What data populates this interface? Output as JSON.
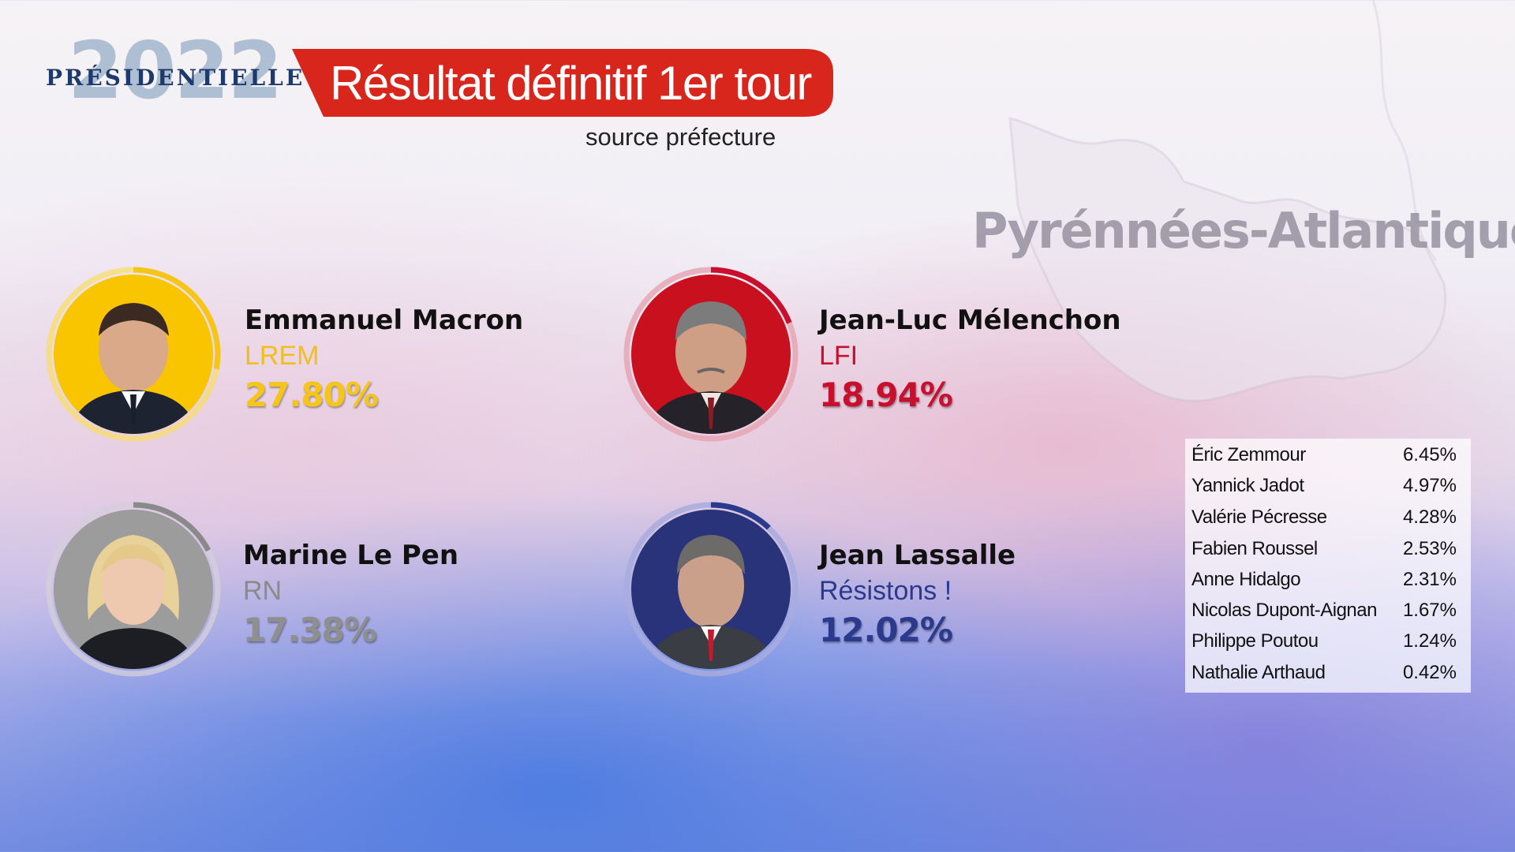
{
  "header": {
    "year": "2022",
    "election": "PRÉSIDENTIELLE",
    "banner_title": "Résultat définitif 1er tour",
    "source": "source préfecture",
    "region": "Pyrénnées-Atlantiques",
    "banner_color": "#d8261c"
  },
  "chart_data": {
    "type": "table",
    "unit": "%",
    "main_candidates": [
      {
        "name": "Emmanuel Macron",
        "party": "LREM",
        "value": 27.8,
        "label": "27.80%",
        "color": "#f5c518",
        "party_color": "#f0bf1a"
      },
      {
        "name": "Jean-Luc Mélenchon",
        "party": "LFI",
        "value": 18.94,
        "label": "18.94%",
        "color": "#c8102e",
        "party_color": "#c8102e"
      },
      {
        "name": "Marine Le Pen",
        "party": "RN",
        "value": 17.38,
        "label": "17.38%",
        "color": "#8a8a8a",
        "party_color": "#8a8a8a"
      },
      {
        "name": "Jean Lassalle",
        "party": "Résistons !",
        "value": 12.02,
        "label": "12.02%",
        "color": "#2b3a8c",
        "party_color": "#2b3a8c"
      }
    ],
    "other_candidates": [
      {
        "name": "Éric Zemmour",
        "value": 6.45,
        "label": "6.45%"
      },
      {
        "name": "Yannick Jadot",
        "value": 4.97,
        "label": "4.97%"
      },
      {
        "name": "Valérie Pécresse",
        "value": 4.28,
        "label": "4.28%"
      },
      {
        "name": "Fabien Roussel",
        "value": 2.53,
        "label": "2.53%"
      },
      {
        "name": "Anne Hidalgo",
        "value": 2.31,
        "label": "2.31%"
      },
      {
        "name": "Nicolas Dupont-Aignan",
        "value": 1.67,
        "label": "1.67%"
      },
      {
        "name": "Philippe Poutou",
        "value": 1.24,
        "label": "1.24%"
      },
      {
        "name": "Nathalie Arthaud",
        "value": 0.42,
        "label": "0.42%"
      }
    ]
  }
}
